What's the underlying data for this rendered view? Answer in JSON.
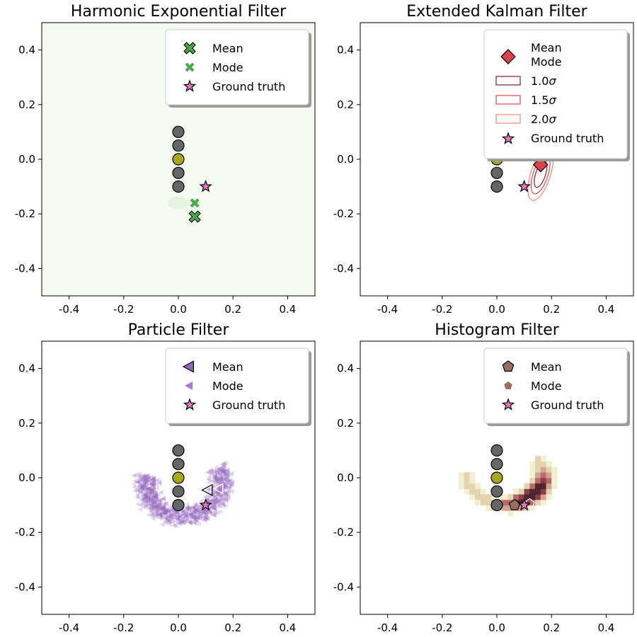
{
  "chart_data": [
    {
      "type": "scatter",
      "title": "Harmonic Exponential Filter",
      "xlim": [
        -0.5,
        0.5
      ],
      "ylim": [
        -0.5,
        0.5
      ],
      "xticks": [
        "-0.4",
        "-0.2",
        "0.0",
        "0.2",
        "0.4"
      ],
      "yticks": [
        "-0.4",
        "-0.2",
        "0.0",
        "0.2",
        "0.4"
      ],
      "landmarks": [
        [
          0,
          0.1
        ],
        [
          0,
          0.05
        ],
        [
          0,
          -0.05
        ],
        [
          0,
          -0.1
        ]
      ],
      "robot": [
        0,
        0
      ],
      "mean": [
        0.06,
        -0.21
      ],
      "mode": [
        0.06,
        -0.16
      ],
      "ground_truth": [
        0.1,
        -0.1
      ],
      "legend": [
        "Mean",
        "Mode",
        "Ground truth"
      ],
      "colors": {
        "main": "#4ca84c",
        "background": "#f6fbf1"
      }
    },
    {
      "type": "scatter",
      "title": "Extended Kalman Filter",
      "xlim": [
        -0.5,
        0.5
      ],
      "ylim": [
        -0.5,
        0.5
      ],
      "xticks": [
        "-0.4",
        "-0.2",
        "0.0",
        "0.2",
        "0.4"
      ],
      "yticks": [
        "-0.4",
        "-0.2",
        "0.0",
        "0.2",
        "0.4"
      ],
      "landmarks": [
        [
          0,
          0.1
        ],
        [
          0,
          0.05
        ],
        [
          0,
          -0.05
        ],
        [
          0,
          -0.1
        ]
      ],
      "robot": [
        0,
        0
      ],
      "mean": [
        0.16,
        -0.02
      ],
      "mode": [
        0.16,
        -0.02
      ],
      "ground_truth": [
        0.1,
        -0.1
      ],
      "ellipses": [
        {
          "label": "1.0σ",
          "rx": 0.018,
          "ry": 0.05,
          "color": "#8b1a2a"
        },
        {
          "label": "1.5σ",
          "rx": 0.027,
          "ry": 0.075,
          "color": "#e0464a"
        },
        {
          "label": "2.0σ",
          "rx": 0.036,
          "ry": 0.1,
          "color": "#f4876a"
        }
      ],
      "legend": [
        "Mean",
        "Mode",
        "1.0σ",
        "1.5σ",
        "2.0σ",
        "Ground truth"
      ],
      "legend_sigma": [
        "1.0",
        "1.5",
        "2.0"
      ],
      "sigma_symbol": "σ",
      "colors": {
        "main": "#d9454a"
      }
    },
    {
      "type": "scatter",
      "title": "Particle Filter",
      "xlim": [
        -0.5,
        0.5
      ],
      "ylim": [
        -0.5,
        0.5
      ],
      "xticks": [
        "-0.4",
        "-0.2",
        "0.0",
        "0.2",
        "0.4"
      ],
      "yticks": [
        "-0.4",
        "-0.2",
        "0.0",
        "0.2",
        "0.4"
      ],
      "landmarks": [
        [
          0,
          0.1
        ],
        [
          0,
          0.05
        ],
        [
          0,
          -0.05
        ],
        [
          0,
          -0.1
        ]
      ],
      "robot": [
        0,
        0
      ],
      "mean": [
        0.11,
        -0.045
      ],
      "mode": [
        0.15,
        -0.04
      ],
      "ground_truth": [
        0.1,
        -0.1
      ],
      "particles": {
        "count": 900,
        "arc_center": [
          0.02,
          -0.02
        ],
        "radius": 0.16,
        "angle_deg": [
          -30,
          195
        ]
      },
      "legend": [
        "Mean",
        "Mode",
        "Ground truth"
      ],
      "colors": {
        "main": "#9467bd"
      }
    },
    {
      "type": "heatmap",
      "title": "Histogram Filter",
      "xlim": [
        -0.5,
        0.5
      ],
      "ylim": [
        -0.5,
        0.5
      ],
      "xticks": [
        "-0.4",
        "-0.2",
        "0.0",
        "0.2",
        "0.4"
      ],
      "yticks": [
        "-0.4",
        "-0.2",
        "0.0",
        "0.2",
        "0.4"
      ],
      "landmarks": [
        [
          0,
          0.1
        ],
        [
          0,
          0.05
        ],
        [
          0,
          -0.05
        ],
        [
          0,
          -0.1
        ]
      ],
      "robot": [
        0,
        0
      ],
      "mean": [
        0.065,
        -0.1
      ],
      "mode": [
        0.12,
        -0.095
      ],
      "ground_truth": [
        0.1,
        -0.1
      ],
      "legend": [
        "Mean",
        "Mode",
        "Ground truth"
      ],
      "colors": {
        "main": "#9a6e5f",
        "dark": "#3b0f1a",
        "light": "#efeecb"
      }
    }
  ],
  "colors": {
    "landmark": "#666666",
    "robot": "#a8a81a",
    "ground_truth": "#e377c2"
  }
}
